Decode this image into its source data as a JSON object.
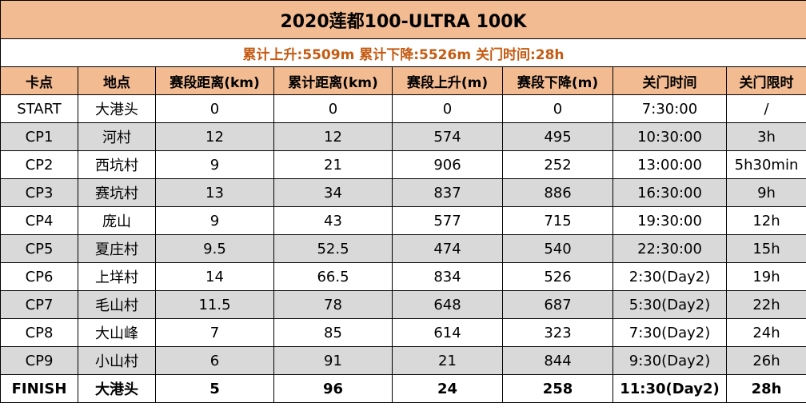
{
  "title": "2020莲都100-ULTRA 100K",
  "subtitle": "累计上升:5509m 累计下降:5526m 关门时间:28h",
  "headers": [
    "卡点",
    "地点",
    "赛段距离(km)",
    "累计距离(km)",
    "赛段上升(m)",
    "赛段下降(m)",
    "关门时间",
    "关门限时"
  ],
  "rows": [
    [
      "START",
      "大港头",
      "0",
      "0",
      "0",
      "0",
      "7:30:00",
      "/"
    ],
    [
      "CP1",
      "河村",
      "12",
      "12",
      "574",
      "495",
      "10:30:00",
      "3h"
    ],
    [
      "CP2",
      "西坑村",
      "9",
      "21",
      "906",
      "252",
      "13:00:00",
      "5h30min"
    ],
    [
      "CP3",
      "赛坑村",
      "13",
      "34",
      "837",
      "886",
      "16:30:00",
      "9h"
    ],
    [
      "CP4",
      "庞山",
      "9",
      "43",
      "577",
      "715",
      "19:30:00",
      "12h"
    ],
    [
      "CP5",
      "夏庄村",
      "9.5",
      "52.5",
      "474",
      "540",
      "22:30:00",
      "15h"
    ],
    [
      "CP6",
      "上垟村",
      "14",
      "66.5",
      "834",
      "526",
      "2:30(Day2)",
      "19h"
    ],
    [
      "CP7",
      "毛山村",
      "11.5",
      "78",
      "648",
      "687",
      "5:30(Day2)",
      "22h"
    ],
    [
      "CP8",
      "大山峰",
      "7",
      "85",
      "614",
      "323",
      "7:30(Day2)",
      "24h"
    ],
    [
      "CP9",
      "小山村",
      "6",
      "91",
      "21",
      "844",
      "9:30(Day2)",
      "26h"
    ],
    [
      "FINISH",
      "大港头",
      "5",
      "96",
      "24",
      "258",
      "11:30(Day2)",
      "28h"
    ]
  ],
  "colors": {
    "header_bg": "#f2bb92",
    "alt_row_bg": "#d9d9d9",
    "subtitle_text": "#c55a11"
  }
}
